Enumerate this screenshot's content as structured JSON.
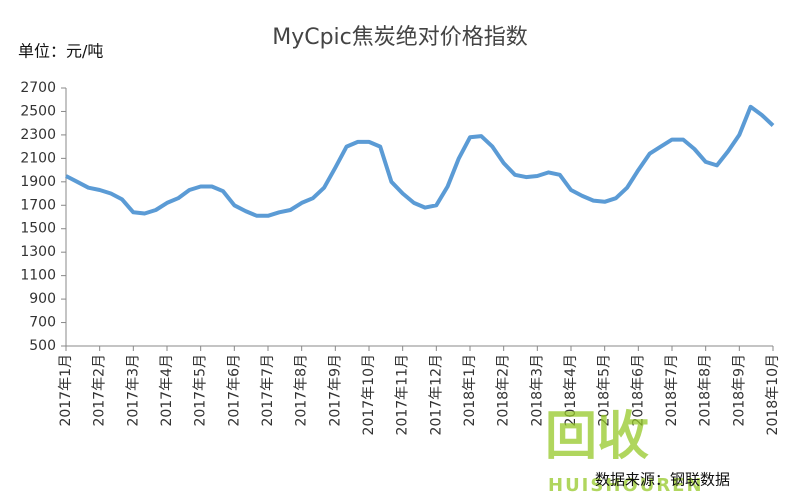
{
  "chart_data": {
    "type": "line",
    "title": "MyCpic焦炭绝对价格指数",
    "y_unit": "单位：元/吨",
    "source": "数据来源：钢联数据",
    "watermark": {
      "logo": "回收",
      "text": "HUISHOUREN"
    },
    "categories": [
      "2017年1月",
      null,
      null,
      "2017年2月",
      null,
      null,
      "2017年3月",
      null,
      null,
      "2017年4月",
      null,
      null,
      "2017年5月",
      null,
      null,
      "2017年6月",
      null,
      null,
      "2017年7月",
      null,
      null,
      "2017年8月",
      null,
      null,
      "2017年9月",
      null,
      null,
      "2017年10月",
      null,
      null,
      "2017年11月",
      null,
      null,
      "2017年12月",
      null,
      null,
      "2018年1月",
      null,
      null,
      "2018年2月",
      null,
      null,
      "2018年3月",
      null,
      null,
      "2018年4月",
      null,
      null,
      "2018年5月",
      null,
      null,
      "2018年6月",
      null,
      null,
      "2018年7月",
      null,
      null,
      "2018年8月",
      null,
      null,
      "2018年9月",
      null,
      null,
      "2018年10月"
    ],
    "values": [
      1950,
      1900,
      1850,
      1830,
      1800,
      1750,
      1640,
      1630,
      1660,
      1720,
      1760,
      1830,
      1860,
      1860,
      1820,
      1700,
      1650,
      1610,
      1610,
      1640,
      1660,
      1720,
      1760,
      1850,
      2020,
      2200,
      2240,
      2240,
      2200,
      1900,
      1800,
      1720,
      1680,
      1700,
      1860,
      2100,
      2280,
      2290,
      2200,
      2060,
      1960,
      1940,
      1950,
      1980,
      1960,
      1830,
      1780,
      1740,
      1730,
      1760,
      1850,
      2000,
      2140,
      2200,
      2260,
      2260,
      2180,
      2070,
      2040,
      2160,
      2300,
      2540,
      2470,
      2380
    ],
    "color": "#5b9bd5",
    "ylim": [
      500,
      2700
    ],
    "yticks": [
      500,
      700,
      900,
      1100,
      1300,
      1500,
      1700,
      1900,
      2100,
      2300,
      2500,
      2700
    ],
    "grid": false
  }
}
